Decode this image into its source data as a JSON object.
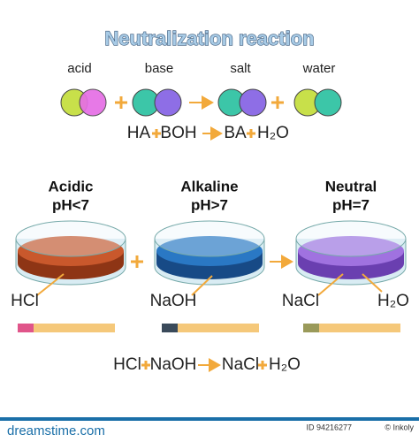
{
  "title": "Neutralization reaction",
  "molecules": [
    {
      "label": "acid"
    },
    {
      "label": "base"
    },
    {
      "label": "salt"
    },
    {
      "label": "water"
    }
  ],
  "equation1": [
    "HA",
    "BOH",
    "BA",
    "H₂O"
  ],
  "dishes": [
    {
      "title": "Acidic",
      "subtitle": "pH<7",
      "labels": [
        "HCl"
      ]
    },
    {
      "title": "Alkaline",
      "subtitle": "pH>7",
      "labels": [
        "NaOH"
      ]
    },
    {
      "title": "Neutral",
      "subtitle": "pH=7",
      "labels": [
        "NaCl",
        "H₂O"
      ]
    }
  ],
  "equation2": [
    "HCl",
    "NaOH",
    "NaCl",
    "H₂O"
  ],
  "footer": {
    "site": "dreamstime.com",
    "id": "ID 94216277",
    "credit": "© Inkoly"
  }
}
